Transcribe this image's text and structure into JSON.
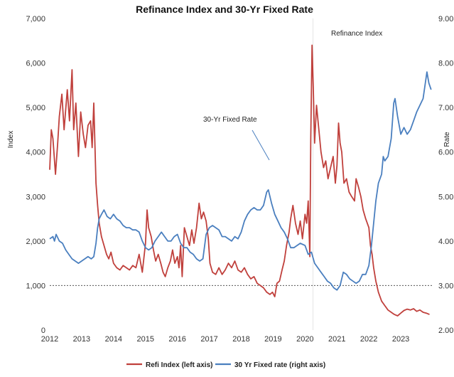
{
  "chart_data": {
    "type": "line",
    "title": "Refinance Index and 30-Yr Fixed Rate",
    "ylabel_left": "Index",
    "ylabel_right": "Rate",
    "xlim": [
      2012.0,
      2024.0
    ],
    "ylim_left": [
      0,
      7000
    ],
    "ylim_right": [
      2.0,
      9.0
    ],
    "x_ticks": [
      "2012",
      "2013",
      "2014",
      "2015",
      "2016",
      "2017",
      "2018",
      "2019",
      "2020",
      "2021",
      "2022",
      "2023"
    ],
    "y_left_ticks": [
      "0",
      "1,000",
      "2,000",
      "3,000",
      "4,000",
      "5,000",
      "6,000",
      "7,000"
    ],
    "y_right_ticks": [
      "2.00",
      "3.00",
      "4.00",
      "5.00",
      "6.00",
      "7.00",
      "8.00",
      "9.00"
    ],
    "reference_line": {
      "axis": "left",
      "value": 1000,
      "style": "dashed"
    },
    "vertical_marker_x": 2020.25,
    "grid": false,
    "legend_position": "bottom",
    "annotations": [
      {
        "text": "Refinance Index"
      },
      {
        "text": "30-Yr Fixed Rate"
      }
    ],
    "series": [
      {
        "name": "Refi Index (left axis)",
        "axis": "left",
        "color": "#c0403c",
        "points": [
          [
            2012.0,
            3600
          ],
          [
            2012.05,
            4500
          ],
          [
            2012.1,
            4300
          ],
          [
            2012.18,
            3500
          ],
          [
            2012.25,
            4200
          ],
          [
            2012.3,
            4800
          ],
          [
            2012.38,
            5300
          ],
          [
            2012.45,
            4500
          ],
          [
            2012.55,
            5400
          ],
          [
            2012.62,
            4700
          ],
          [
            2012.7,
            5850
          ],
          [
            2012.75,
            4500
          ],
          [
            2012.82,
            5100
          ],
          [
            2012.9,
            3900
          ],
          [
            2012.97,
            4900
          ],
          [
            2013.05,
            4400
          ],
          [
            2013.12,
            4100
          ],
          [
            2013.2,
            4600
          ],
          [
            2013.28,
            4700
          ],
          [
            2013.33,
            4100
          ],
          [
            2013.38,
            5100
          ],
          [
            2013.45,
            3300
          ],
          [
            2013.5,
            2800
          ],
          [
            2013.55,
            2400
          ],
          [
            2013.62,
            2100
          ],
          [
            2013.7,
            1900
          ],
          [
            2013.78,
            1700
          ],
          [
            2013.85,
            1600
          ],
          [
            2013.92,
            1750
          ],
          [
            2014.0,
            1500
          ],
          [
            2014.1,
            1400
          ],
          [
            2014.2,
            1350
          ],
          [
            2014.3,
            1450
          ],
          [
            2014.4,
            1400
          ],
          [
            2014.5,
            1350
          ],
          [
            2014.6,
            1450
          ],
          [
            2014.7,
            1400
          ],
          [
            2014.8,
            1700
          ],
          [
            2014.9,
            1300
          ],
          [
            2015.0,
            1950
          ],
          [
            2015.05,
            2700
          ],
          [
            2015.1,
            2300
          ],
          [
            2015.18,
            2100
          ],
          [
            2015.25,
            1800
          ],
          [
            2015.32,
            1550
          ],
          [
            2015.4,
            1700
          ],
          [
            2015.48,
            1500
          ],
          [
            2015.55,
            1300
          ],
          [
            2015.62,
            1200
          ],
          [
            2015.7,
            1400
          ],
          [
            2015.78,
            1550
          ],
          [
            2015.85,
            1800
          ],
          [
            2015.92,
            1500
          ],
          [
            2016.0,
            1650
          ],
          [
            2016.05,
            1400
          ],
          [
            2016.1,
            1900
          ],
          [
            2016.15,
            1200
          ],
          [
            2016.22,
            2300
          ],
          [
            2016.3,
            2100
          ],
          [
            2016.38,
            1900
          ],
          [
            2016.45,
            2250
          ],
          [
            2016.52,
            1950
          ],
          [
            2016.6,
            2300
          ],
          [
            2016.68,
            2850
          ],
          [
            2016.75,
            2500
          ],
          [
            2016.82,
            2650
          ],
          [
            2016.9,
            2450
          ],
          [
            2016.97,
            2050
          ],
          [
            2017.02,
            1500
          ],
          [
            2017.1,
            1300
          ],
          [
            2017.2,
            1250
          ],
          [
            2017.3,
            1400
          ],
          [
            2017.4,
            1250
          ],
          [
            2017.5,
            1350
          ],
          [
            2017.6,
            1500
          ],
          [
            2017.7,
            1400
          ],
          [
            2017.8,
            1550
          ],
          [
            2017.9,
            1350
          ],
          [
            2018.0,
            1300
          ],
          [
            2018.1,
            1400
          ],
          [
            2018.2,
            1250
          ],
          [
            2018.3,
            1150
          ],
          [
            2018.4,
            1200
          ],
          [
            2018.5,
            1050
          ],
          [
            2018.6,
            1000
          ],
          [
            2018.7,
            950
          ],
          [
            2018.8,
            850
          ],
          [
            2018.9,
            800
          ],
          [
            2018.98,
            850
          ],
          [
            2019.05,
            750
          ],
          [
            2019.12,
            1050
          ],
          [
            2019.2,
            1100
          ],
          [
            2019.28,
            1350
          ],
          [
            2019.35,
            1550
          ],
          [
            2019.42,
            1900
          ],
          [
            2019.5,
            2200
          ],
          [
            2019.55,
            2500
          ],
          [
            2019.62,
            2800
          ],
          [
            2019.7,
            2400
          ],
          [
            2019.78,
            2150
          ],
          [
            2019.85,
            2450
          ],
          [
            2019.92,
            2050
          ],
          [
            2020.0,
            2600
          ],
          [
            2020.05,
            2400
          ],
          [
            2020.1,
            2900
          ],
          [
            2020.15,
            1650
          ],
          [
            2020.18,
            4300
          ],
          [
            2020.22,
            6400
          ],
          [
            2020.26,
            5400
          ],
          [
            2020.3,
            4200
          ],
          [
            2020.36,
            5050
          ],
          [
            2020.42,
            4600
          ],
          [
            2020.5,
            4000
          ],
          [
            2020.58,
            3650
          ],
          [
            2020.65,
            3800
          ],
          [
            2020.72,
            3400
          ],
          [
            2020.8,
            3650
          ],
          [
            2020.88,
            3900
          ],
          [
            2020.95,
            3300
          ],
          [
            2021.0,
            3700
          ],
          [
            2021.05,
            4650
          ],
          [
            2021.1,
            4200
          ],
          [
            2021.15,
            4000
          ],
          [
            2021.22,
            3300
          ],
          [
            2021.3,
            3400
          ],
          [
            2021.38,
            3100
          ],
          [
            2021.46,
            3000
          ],
          [
            2021.55,
            2900
          ],
          [
            2021.6,
            3400
          ],
          [
            2021.68,
            3200
          ],
          [
            2021.75,
            3000
          ],
          [
            2021.82,
            2700
          ],
          [
            2021.9,
            2500
          ],
          [
            2022.0,
            2300
          ],
          [
            2022.05,
            1900
          ],
          [
            2022.1,
            1700
          ],
          [
            2022.15,
            1400
          ],
          [
            2022.22,
            1100
          ],
          [
            2022.3,
            850
          ],
          [
            2022.4,
            650
          ],
          [
            2022.5,
            550
          ],
          [
            2022.6,
            450
          ],
          [
            2022.7,
            400
          ],
          [
            2022.8,
            350
          ],
          [
            2022.9,
            320
          ],
          [
            2023.0,
            380
          ],
          [
            2023.1,
            440
          ],
          [
            2023.2,
            470
          ],
          [
            2023.3,
            450
          ],
          [
            2023.4,
            480
          ],
          [
            2023.5,
            420
          ],
          [
            2023.6,
            450
          ],
          [
            2023.7,
            400
          ],
          [
            2023.8,
            380
          ],
          [
            2023.9,
            350
          ]
        ]
      },
      {
        "name": "30 Yr Fixed rate (right axis)",
        "axis": "right",
        "color": "#4a7fbf",
        "points": [
          [
            2012.0,
            4.05
          ],
          [
            2012.1,
            4.1
          ],
          [
            2012.15,
            4.0
          ],
          [
            2012.2,
            4.15
          ],
          [
            2012.3,
            4.0
          ],
          [
            2012.4,
            3.95
          ],
          [
            2012.5,
            3.8
          ],
          [
            2012.6,
            3.7
          ],
          [
            2012.7,
            3.6
          ],
          [
            2012.8,
            3.55
          ],
          [
            2012.9,
            3.5
          ],
          [
            2013.0,
            3.55
          ],
          [
            2013.1,
            3.6
          ],
          [
            2013.2,
            3.65
          ],
          [
            2013.3,
            3.6
          ],
          [
            2013.38,
            3.65
          ],
          [
            2013.45,
            3.95
          ],
          [
            2013.5,
            4.3
          ],
          [
            2013.55,
            4.5
          ],
          [
            2013.62,
            4.6
          ],
          [
            2013.7,
            4.7
          ],
          [
            2013.8,
            4.55
          ],
          [
            2013.9,
            4.5
          ],
          [
            2014.0,
            4.6
          ],
          [
            2014.1,
            4.5
          ],
          [
            2014.2,
            4.45
          ],
          [
            2014.3,
            4.35
          ],
          [
            2014.4,
            4.3
          ],
          [
            2014.5,
            4.3
          ],
          [
            2014.6,
            4.25
          ],
          [
            2014.7,
            4.25
          ],
          [
            2014.8,
            4.2
          ],
          [
            2014.9,
            4.0
          ],
          [
            2015.0,
            3.85
          ],
          [
            2015.1,
            3.8
          ],
          [
            2015.2,
            3.85
          ],
          [
            2015.3,
            4.0
          ],
          [
            2015.4,
            4.1
          ],
          [
            2015.5,
            4.2
          ],
          [
            2015.6,
            4.1
          ],
          [
            2015.7,
            4.0
          ],
          [
            2015.8,
            4.0
          ],
          [
            2015.9,
            4.1
          ],
          [
            2016.0,
            4.15
          ],
          [
            2016.1,
            3.95
          ],
          [
            2016.2,
            3.85
          ],
          [
            2016.3,
            3.85
          ],
          [
            2016.4,
            3.75
          ],
          [
            2016.5,
            3.7
          ],
          [
            2016.6,
            3.6
          ],
          [
            2016.7,
            3.55
          ],
          [
            2016.8,
            3.6
          ],
          [
            2016.9,
            4.15
          ],
          [
            2017.0,
            4.3
          ],
          [
            2017.1,
            4.35
          ],
          [
            2017.2,
            4.3
          ],
          [
            2017.3,
            4.25
          ],
          [
            2017.4,
            4.1
          ],
          [
            2017.5,
            4.1
          ],
          [
            2017.6,
            4.05
          ],
          [
            2017.7,
            4.0
          ],
          [
            2017.8,
            4.1
          ],
          [
            2017.9,
            4.05
          ],
          [
            2018.0,
            4.2
          ],
          [
            2018.1,
            4.45
          ],
          [
            2018.2,
            4.6
          ],
          [
            2018.3,
            4.7
          ],
          [
            2018.4,
            4.75
          ],
          [
            2018.5,
            4.7
          ],
          [
            2018.6,
            4.7
          ],
          [
            2018.7,
            4.8
          ],
          [
            2018.8,
            5.1
          ],
          [
            2018.85,
            5.15
          ],
          [
            2018.95,
            4.85
          ],
          [
            2019.05,
            4.6
          ],
          [
            2019.15,
            4.45
          ],
          [
            2019.25,
            4.3
          ],
          [
            2019.35,
            4.2
          ],
          [
            2019.45,
            4.05
          ],
          [
            2019.55,
            3.85
          ],
          [
            2019.65,
            3.85
          ],
          [
            2019.75,
            3.9
          ],
          [
            2019.85,
            3.95
          ],
          [
            2020.0,
            3.9
          ],
          [
            2020.1,
            3.7
          ],
          [
            2020.2,
            3.75
          ],
          [
            2020.3,
            3.5
          ],
          [
            2020.4,
            3.4
          ],
          [
            2020.5,
            3.3
          ],
          [
            2020.6,
            3.2
          ],
          [
            2020.7,
            3.1
          ],
          [
            2020.8,
            3.05
          ],
          [
            2020.9,
            2.95
          ],
          [
            2021.0,
            2.9
          ],
          [
            2021.1,
            3.0
          ],
          [
            2021.2,
            3.3
          ],
          [
            2021.3,
            3.25
          ],
          [
            2021.4,
            3.15
          ],
          [
            2021.5,
            3.1
          ],
          [
            2021.6,
            3.05
          ],
          [
            2021.7,
            3.1
          ],
          [
            2021.8,
            3.25
          ],
          [
            2021.9,
            3.25
          ],
          [
            2022.0,
            3.45
          ],
          [
            2022.08,
            3.9
          ],
          [
            2022.15,
            4.4
          ],
          [
            2022.22,
            4.9
          ],
          [
            2022.3,
            5.3
          ],
          [
            2022.4,
            5.5
          ],
          [
            2022.45,
            5.9
          ],
          [
            2022.5,
            5.8
          ],
          [
            2022.6,
            5.9
          ],
          [
            2022.7,
            6.3
          ],
          [
            2022.78,
            7.1
          ],
          [
            2022.82,
            7.2
          ],
          [
            2022.9,
            6.8
          ],
          [
            2023.0,
            6.4
          ],
          [
            2023.1,
            6.55
          ],
          [
            2023.2,
            6.4
          ],
          [
            2023.3,
            6.5
          ],
          [
            2023.4,
            6.7
          ],
          [
            2023.5,
            6.9
          ],
          [
            2023.6,
            7.05
          ],
          [
            2023.7,
            7.2
          ],
          [
            2023.78,
            7.6
          ],
          [
            2023.82,
            7.8
          ],
          [
            2023.88,
            7.55
          ],
          [
            2023.95,
            7.4
          ]
        ]
      }
    ]
  }
}
